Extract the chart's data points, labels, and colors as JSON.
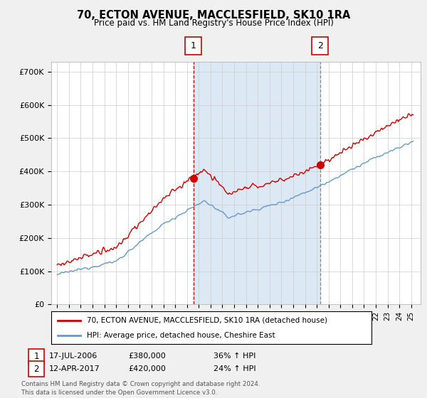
{
  "title": "70, ECTON AVENUE, MACCLESFIELD, SK10 1RA",
  "subtitle": "Price paid vs. HM Land Registry's House Price Index (HPI)",
  "ylim": [
    0,
    730000
  ],
  "yticks": [
    0,
    100000,
    200000,
    300000,
    400000,
    500000,
    600000,
    700000
  ],
  "ytick_labels": [
    "£0",
    "£100K",
    "£200K",
    "£300K",
    "£400K",
    "£500K",
    "£600K",
    "£700K"
  ],
  "red_line_color": "#cc0000",
  "blue_line_color": "#6699cc",
  "marker1_x": 2006.54,
  "marker1_y": 380000,
  "marker2_x": 2017.28,
  "marker2_y": 420000,
  "dashed_line1_color": "#cc0000",
  "dashed_line2_color": "#888888",
  "shade_color": "#dde8f5",
  "legend_red": "70, ECTON AVENUE, MACCLESFIELD, SK10 1RA (detached house)",
  "legend_blue": "HPI: Average price, detached house, Cheshire East",
  "note1_date": "17-JUL-2006",
  "note1_price": "£380,000",
  "note1_hpi": "36% ↑ HPI",
  "note2_date": "12-APR-2017",
  "note2_price": "£420,000",
  "note2_hpi": "24% ↑ HPI",
  "copyright": "Contains HM Land Registry data © Crown copyright and database right 2024.\nThis data is licensed under the Open Government Licence v3.0.",
  "background_color": "#f0f0f0",
  "plot_background": "#ffffff",
  "grid_color": "#cccccc",
  "xlim_left": 1994.5,
  "xlim_right": 2025.8
}
